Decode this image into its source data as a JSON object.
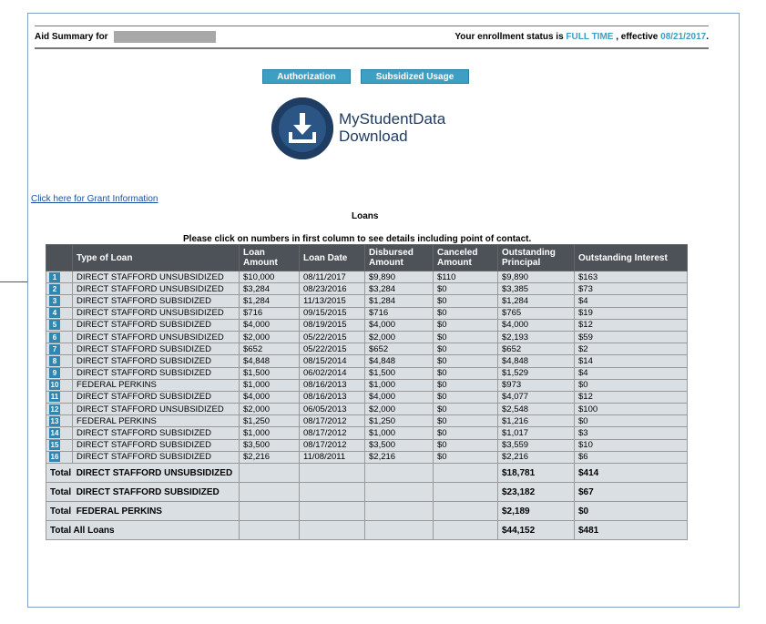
{
  "summary": {
    "label": "Aid Summary for",
    "status_prefix": "Your enrollment status is",
    "status_value": "FULL TIME",
    "effective_label": ", effective",
    "effective_date": "08/21/2017",
    "end_punct": "."
  },
  "buttons": {
    "authorization": "Authorization",
    "subsidized_usage": "Subsidized Usage"
  },
  "logo": {
    "line1": "MyStudentData",
    "line2": "Download",
    "icon": "download-icon"
  },
  "grant_link": "Click here for Grant Information",
  "loans_title": "Loans",
  "instructions": "Please click on numbers in first column to see details including point of contact.",
  "table": {
    "headers": [
      "",
      "Type of Loan",
      "Loan Amount",
      "Loan Date",
      "Disbursed Amount",
      "Canceled Amount",
      "Outstanding Principal",
      "Outstanding Interest"
    ],
    "rows": [
      [
        "1",
        "DIRECT STAFFORD UNSUBSIDIZED",
        "$10,000",
        "08/11/2017",
        "$9,890",
        "$110",
        "$9,890",
        "$163"
      ],
      [
        "2",
        "DIRECT STAFFORD UNSUBSIDIZED",
        "$3,284",
        "08/23/2016",
        "$3,284",
        "$0",
        "$3,385",
        "$73"
      ],
      [
        "3",
        "DIRECT STAFFORD SUBSIDIZED",
        "$1,284",
        "11/13/2015",
        "$1,284",
        "$0",
        "$1,284",
        "$4"
      ],
      [
        "4",
        "DIRECT STAFFORD UNSUBSIDIZED",
        "$716",
        "09/15/2015",
        "$716",
        "$0",
        "$765",
        "$19"
      ],
      [
        "5",
        "DIRECT STAFFORD SUBSIDIZED",
        "$4,000",
        "08/19/2015",
        "$4,000",
        "$0",
        "$4,000",
        "$12"
      ],
      [
        "6",
        "DIRECT STAFFORD UNSUBSIDIZED",
        "$2,000",
        "05/22/2015",
        "$2,000",
        "$0",
        "$2,193",
        "$59"
      ],
      [
        "7",
        "DIRECT STAFFORD SUBSIDIZED",
        "$652",
        "05/22/2015",
        "$652",
        "$0",
        "$652",
        "$2"
      ],
      [
        "8",
        "DIRECT STAFFORD SUBSIDIZED",
        "$4,848",
        "08/15/2014",
        "$4,848",
        "$0",
        "$4,848",
        "$14"
      ],
      [
        "9",
        "DIRECT STAFFORD SUBSIDIZED",
        "$1,500",
        "06/02/2014",
        "$1,500",
        "$0",
        "$1,529",
        "$4"
      ],
      [
        "10",
        "FEDERAL PERKINS",
        "$1,000",
        "08/16/2013",
        "$1,000",
        "$0",
        "$973",
        "$0"
      ],
      [
        "11",
        "DIRECT STAFFORD SUBSIDIZED",
        "$4,000",
        "08/16/2013",
        "$4,000",
        "$0",
        "$4,077",
        "$12"
      ],
      [
        "12",
        "DIRECT STAFFORD UNSUBSIDIZED",
        "$2,000",
        "06/05/2013",
        "$2,000",
        "$0",
        "$2,548",
        "$100"
      ],
      [
        "13",
        "FEDERAL PERKINS",
        "$1,250",
        "08/17/2012",
        "$1,250",
        "$0",
        "$1,216",
        "$0"
      ],
      [
        "14",
        "DIRECT STAFFORD SUBSIDIZED",
        "$1,000",
        "08/17/2012",
        "$1,000",
        "$0",
        "$1,017",
        "$3"
      ],
      [
        "15",
        "DIRECT STAFFORD SUBSIDIZED",
        "$3,500",
        "08/17/2012",
        "$3,500",
        "$0",
        "$3,559",
        "$10"
      ],
      [
        "16",
        "DIRECT STAFFORD SUBSIDIZED",
        "$2,216",
        "11/08/2011",
        "$2,216",
        "$0",
        "$2,216",
        "$6"
      ]
    ],
    "totals": [
      {
        "label": "Total  DIRECT STAFFORD UNSUBSIDIZED",
        "principal": "$18,781",
        "interest": "$414"
      },
      {
        "label": "Total  DIRECT STAFFORD SUBSIDIZED",
        "principal": "$23,182",
        "interest": "$67"
      },
      {
        "label": "Total  FEDERAL PERKINS",
        "principal": "$2,189",
        "interest": "$0"
      },
      {
        "label": "Total All Loans",
        "principal": "$44,152",
        "interest": "$481"
      }
    ]
  },
  "colors": {
    "accent": "#3d9fc4",
    "header_bg": "#4d5259",
    "row_bg": "#dadfe4",
    "badge": "#2f86b1",
    "logo": "#1f3c63"
  }
}
